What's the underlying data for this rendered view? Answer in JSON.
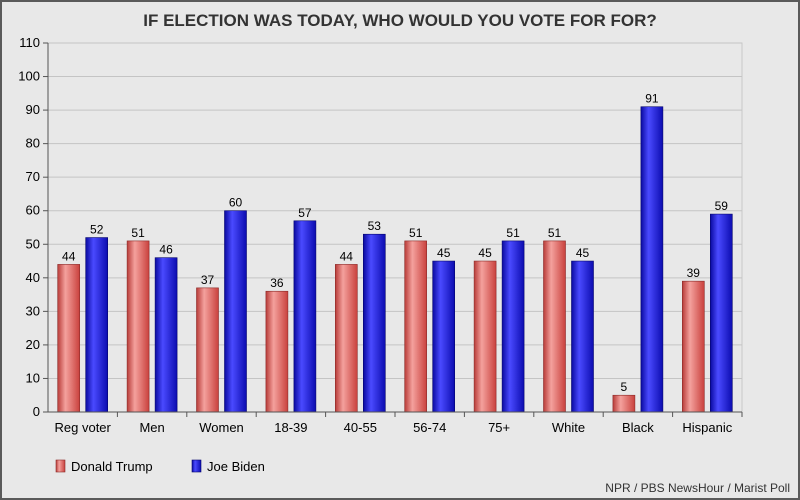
{
  "chart_data": {
    "type": "bar",
    "title": "IF ELECTION WAS TODAY, WHO WOULD YOU VOTE FOR FOR?",
    "categories": [
      "Reg voter",
      "Men",
      "Women",
      "18-39",
      "40-55",
      "56-74",
      "75+",
      "White",
      "Black",
      "Hispanic"
    ],
    "series": [
      {
        "name": "Donald Trump",
        "values": [
          44,
          51,
          37,
          36,
          44,
          51,
          45,
          51,
          5,
          39
        ],
        "color": "#e8706c"
      },
      {
        "name": "Joe Biden",
        "values": [
          52,
          46,
          60,
          57,
          53,
          45,
          51,
          45,
          91,
          59
        ],
        "color": "#2020d8"
      }
    ],
    "ylim": [
      0,
      110
    ],
    "yticks": [
      0,
      10,
      20,
      30,
      40,
      50,
      60,
      70,
      80,
      90,
      100,
      110
    ],
    "grid": true,
    "legend": "bottom-left",
    "source": "NPR / PBS NewsHour / Marist Poll"
  }
}
